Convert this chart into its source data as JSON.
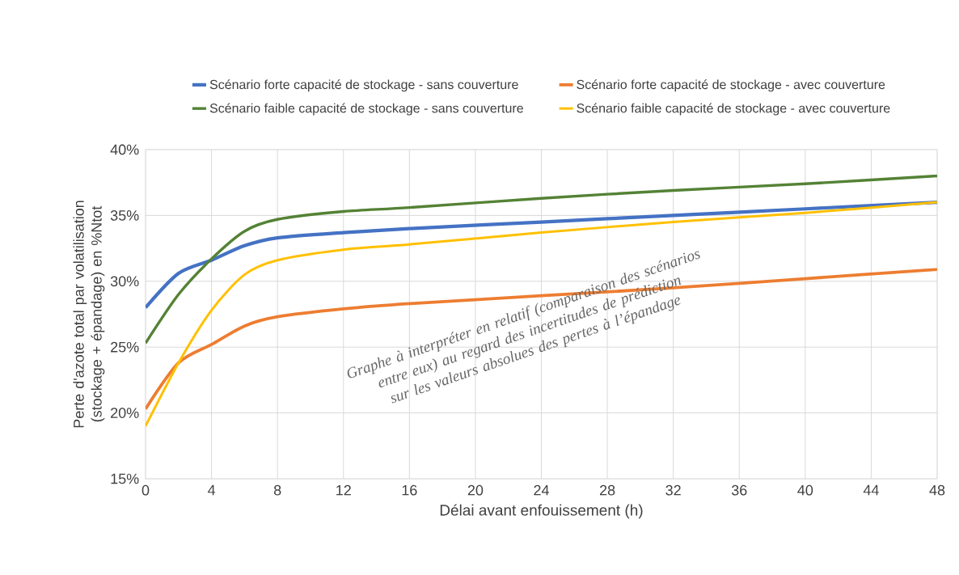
{
  "chart_data": {
    "type": "line",
    "xlabel": "Délai avant enfouissement (h)",
    "ylabel": "Perte d'azote total par volatilisation (stockage + épandage) en %Ntot",
    "x": [
      0,
      2,
      4,
      6,
      8,
      12,
      16,
      24,
      32,
      40,
      48
    ],
    "series": [
      {
        "name": "Scénario forte capacité de stockage  - sans couverture",
        "color": "#4472c4",
        "values": [
          28.0,
          30.6,
          31.6,
          32.7,
          33.3,
          33.7,
          34.0,
          34.5,
          35.0,
          35.5,
          36.0
        ]
      },
      {
        "name": "Scénario forte capacité de stockage - avec couverture",
        "color": "#ed7d31",
        "values": [
          20.3,
          23.8,
          25.2,
          26.6,
          27.3,
          27.9,
          28.3,
          28.9,
          29.5,
          30.2,
          30.9
        ]
      },
      {
        "name": "Scénario faible capacité de stockage  - sans couverture",
        "color": "#548235",
        "values": [
          25.3,
          29.0,
          31.7,
          33.8,
          34.7,
          35.3,
          35.6,
          36.3,
          36.9,
          37.4,
          38.0
        ]
      },
      {
        "name": "Scénario faible capacité de stockage - avec couverture",
        "color": "#ffc000",
        "values": [
          19.0,
          23.8,
          27.8,
          30.5,
          31.6,
          32.4,
          32.8,
          33.7,
          34.5,
          35.2,
          36.0
        ]
      }
    ],
    "xlim": [
      0,
      48
    ],
    "xticks": [
      0,
      4,
      8,
      12,
      16,
      20,
      24,
      28,
      32,
      36,
      40,
      44,
      48
    ],
    "ylim": [
      15,
      40
    ],
    "yticks": [
      {
        "value": 15,
        "label": "15%"
      },
      {
        "value": 20,
        "label": "20%"
      },
      {
        "value": 25,
        "label": "25%"
      },
      {
        "value": 30,
        "label": "30%"
      },
      {
        "value": 35,
        "label": "35%"
      },
      {
        "value": 40,
        "label": "40%"
      }
    ],
    "grid": true,
    "legend": "top",
    "marker": "none",
    "line_style": "solid",
    "annotations": [
      "Graphe à interpréter en relatif (comparaison des scénarios entre eux) au regard des incertitudes de prédiction sur les valeurs absolues des pertes à l’épandage"
    ]
  }
}
